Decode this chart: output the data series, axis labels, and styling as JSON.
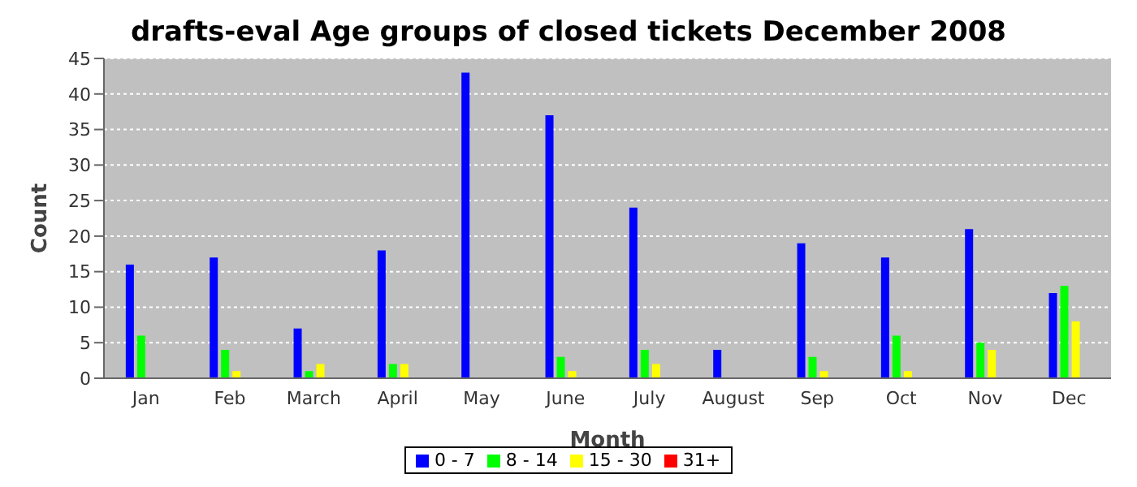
{
  "chart_data": {
    "type": "bar",
    "title": "drafts-eval Age groups of closed tickets December 2008",
    "xlabel": "Month",
    "ylabel": "Count",
    "categories": [
      "Jan",
      "Feb",
      "March",
      "April",
      "May",
      "June",
      "July",
      "August",
      "Sep",
      "Oct",
      "Nov",
      "Dec"
    ],
    "series": [
      {
        "name": "0 - 7",
        "color": "#0000ff",
        "values": [
          16,
          17,
          7,
          18,
          43,
          37,
          24,
          4,
          19,
          17,
          21,
          12
        ]
      },
      {
        "name": "8 - 14",
        "color": "#00ff00",
        "values": [
          6,
          4,
          1,
          2,
          0,
          3,
          4,
          0,
          3,
          6,
          5,
          13
        ]
      },
      {
        "name": "15 - 30",
        "color": "#ffff00",
        "values": [
          0,
          1,
          2,
          2,
          0,
          1,
          2,
          0,
          1,
          1,
          4,
          8
        ]
      },
      {
        "name": "31+",
        "color": "#ff0000",
        "values": [
          0,
          0,
          0,
          0,
          0,
          0,
          0,
          0,
          0,
          0,
          0,
          0
        ]
      }
    ],
    "ylim": [
      0,
      45
    ],
    "yticks": [
      0,
      5,
      10,
      15,
      20,
      25,
      30,
      35,
      40,
      45
    ],
    "grid": "y",
    "legend": "bottom"
  }
}
